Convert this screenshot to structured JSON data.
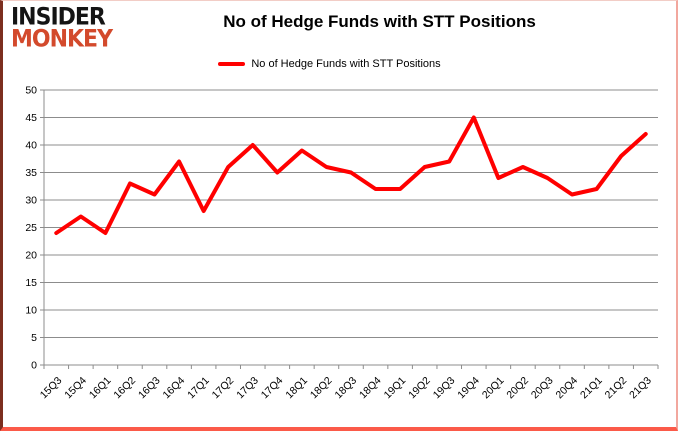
{
  "logo": {
    "line1": "INSIDER",
    "line2": "MONKEY"
  },
  "header": {
    "title": "No of Hedge Funds with STT Positions"
  },
  "legend": {
    "label": "No of Hedge Funds with STT Positions"
  },
  "colors": {
    "line": "#ff0000",
    "grid": "#8c8c8c",
    "axis": "#8c8c8c",
    "tick_text": "#000000",
    "logo_black": "#141414",
    "logo_red": "#d34a2c"
  },
  "chart_data": {
    "type": "line",
    "title": "No of Hedge Funds with STT Positions",
    "categories": [
      "15Q3",
      "15Q4",
      "16Q1",
      "16Q2",
      "16Q3",
      "16Q4",
      "17Q1",
      "17Q2",
      "17Q3",
      "17Q4",
      "18Q1",
      "18Q2",
      "18Q3",
      "18Q4",
      "19Q1",
      "19Q2",
      "19Q3",
      "19Q4",
      "20Q1",
      "20Q2",
      "20Q3",
      "20Q4",
      "21Q1",
      "21Q2",
      "21Q3"
    ],
    "series": [
      {
        "name": "No of Hedge Funds with STT Positions",
        "color": "#ff0000",
        "values": [
          24,
          27,
          24,
          33,
          31,
          37,
          28,
          36,
          40,
          35,
          39,
          36,
          35,
          32,
          32,
          36,
          37,
          45,
          34,
          36,
          34,
          31,
          32,
          38,
          42
        ]
      }
    ],
    "xlabel": "",
    "ylabel": "",
    "ylim": [
      0,
      50
    ],
    "ytick_step": 5,
    "yticks": [
      0,
      5,
      10,
      15,
      20,
      25,
      30,
      35,
      40,
      45,
      50
    ],
    "grid": true,
    "legend_position": "top"
  }
}
